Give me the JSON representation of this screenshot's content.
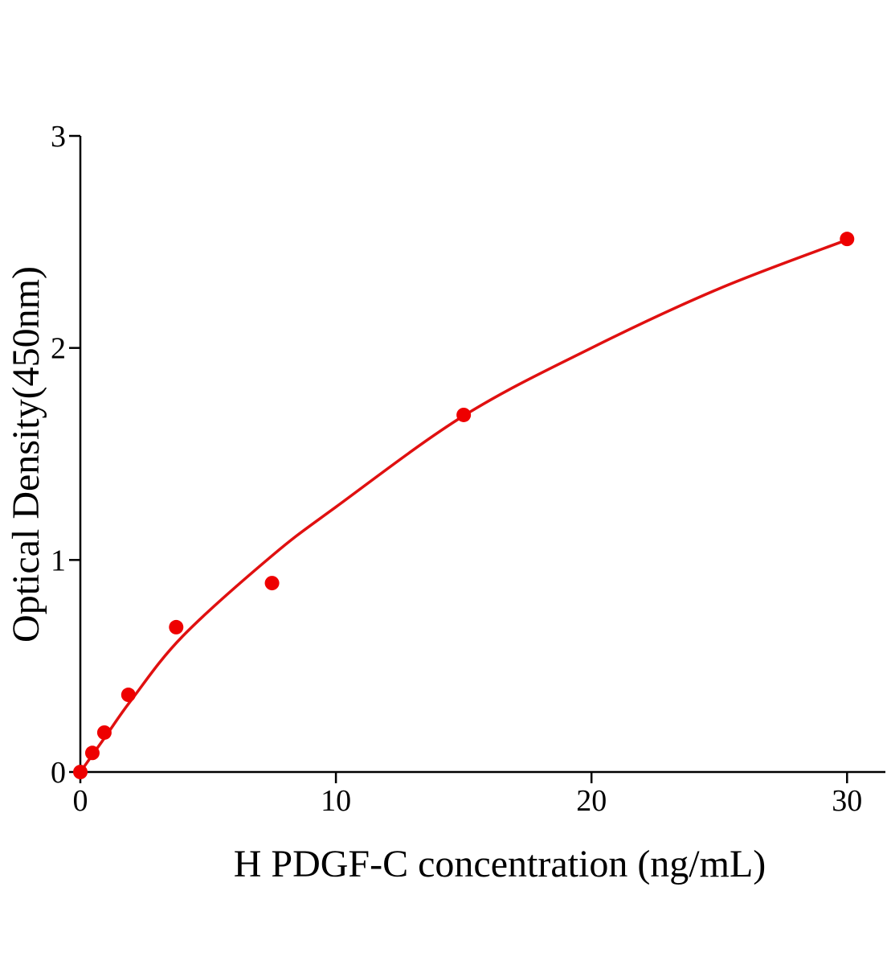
{
  "chart_data": {
    "type": "scatter",
    "x_label": "H PDGF-C concentration (ng/mL)",
    "y_label": "Optical Density(450nm)",
    "xlim": [
      0,
      31.5
    ],
    "ylim": [
      0,
      3
    ],
    "xticks": [
      0,
      10,
      20,
      30
    ],
    "yticks": [
      0,
      1,
      2,
      3
    ],
    "grid": false,
    "series": [
      {
        "type": "scatter",
        "color": "#ee0000",
        "x": [
          0,
          0.47,
          0.94,
          1.88,
          3.75,
          7.5,
          15,
          30
        ],
        "values": [
          0,
          0.09,
          0.186,
          0.364,
          0.683,
          0.891,
          1.684,
          2.514
        ]
      },
      {
        "type": "line",
        "color": "#e01010",
        "x": [
          0,
          1,
          2,
          4,
          7.5,
          10,
          15,
          20,
          25,
          30
        ],
        "values": [
          0,
          0.17,
          0.34,
          0.64,
          1.02,
          1.25,
          1.68,
          2.0,
          2.28,
          2.51
        ]
      }
    ]
  }
}
